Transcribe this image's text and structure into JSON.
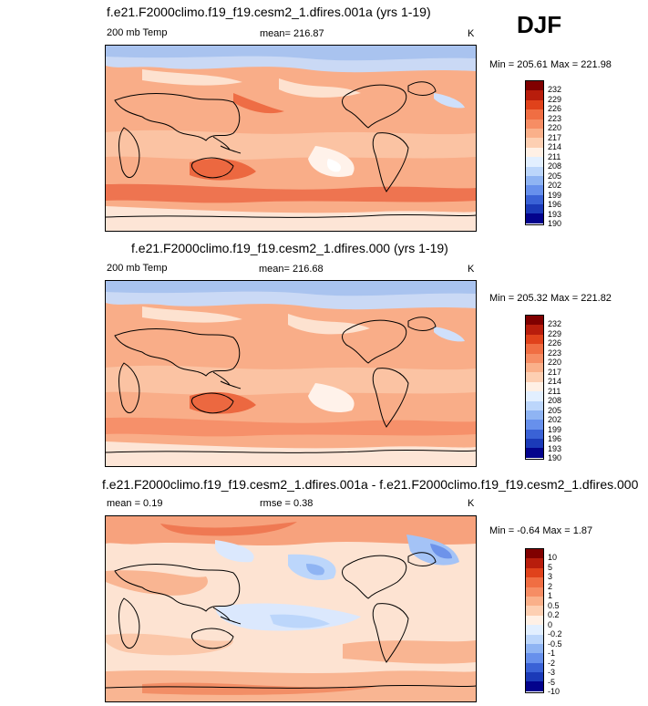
{
  "season": "DJF",
  "panels": [
    {
      "title": "f.e21.F2000climo.f19_f19.cesm2_1.dfires.001a (yrs 1-19)",
      "left_label": "200 mb Temp",
      "center_label": "mean= 216.87",
      "right_label": "K",
      "minmax": "Min = 205.61 Max = 221.98",
      "levels": [
        "232",
        "229",
        "226",
        "223",
        "220",
        "217",
        "214",
        "211",
        "208",
        "205",
        "202",
        "199",
        "196",
        "193",
        "190"
      ],
      "colors": [
        "#800000",
        "#b81d0c",
        "#e0421b",
        "#f06e43",
        "#f68d64",
        "#fab08a",
        "#fdcfb2",
        "#fff0e5",
        "#e2efff",
        "#bcd6fb",
        "#8fb4f3",
        "#6790ec",
        "#3a62d6",
        "#1b3ab8",
        "#03038c"
      ]
    },
    {
      "title": "f.e21.F2000climo.f19_f19.cesm2_1.dfires.000 (yrs 1-19)",
      "left_label": "200 mb Temp",
      "center_label": "mean= 216.68",
      "right_label": "K",
      "minmax": "Min = 205.32 Max = 221.82",
      "levels": [
        "232",
        "229",
        "226",
        "223",
        "220",
        "217",
        "214",
        "211",
        "208",
        "205",
        "202",
        "199",
        "196",
        "193",
        "190"
      ],
      "colors": [
        "#800000",
        "#b81d0c",
        "#e0421b",
        "#f06e43",
        "#f68d64",
        "#fab08a",
        "#fdcfb2",
        "#fff0e5",
        "#e2efff",
        "#bcd6fb",
        "#8fb4f3",
        "#6790ec",
        "#3a62d6",
        "#1b3ab8",
        "#03038c"
      ]
    },
    {
      "title": "f.e21.F2000climo.f19_f19.cesm2_1.dfires.001a - f.e21.F2000climo.f19_f19.cesm2_1.dfires.000",
      "left_label": "mean =  0.19",
      "center_label": "rmse =  0.38",
      "right_label": "K",
      "minmax": "Min = -0.64 Max =  1.87",
      "levels": [
        "10",
        "5",
        "3",
        "2",
        "1",
        "0.5",
        "0.2",
        "0",
        "-0.2",
        "-0.5",
        "-1",
        "-2",
        "-3",
        "-5",
        "-10"
      ],
      "colors": [
        "#800000",
        "#b81d0c",
        "#e0421b",
        "#f06e43",
        "#f68d64",
        "#fab08a",
        "#fdcfb2",
        "#fff0e5",
        "#e2efff",
        "#bcd6fb",
        "#8fb4f3",
        "#6790ec",
        "#3a62d6",
        "#1b3ab8",
        "#03038c"
      ]
    }
  ]
}
